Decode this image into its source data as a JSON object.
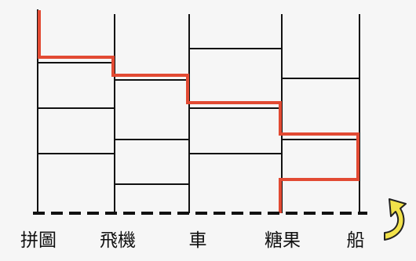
{
  "labels": [
    "拼圖",
    "飛機",
    "車",
    "糖果",
    "船"
  ],
  "colors": {
    "background": "#f6f6f6",
    "ladder": "#111111",
    "path": "#e24a33",
    "arrow": "#f2e24a",
    "arrow_outline": "#222222"
  },
  "icons": {
    "arrow": "curved-arrow-icon"
  }
}
